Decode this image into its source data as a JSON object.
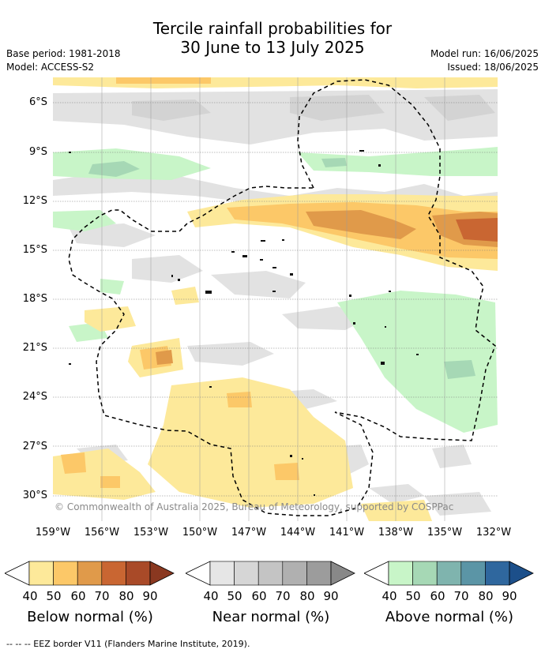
{
  "header": {
    "title_line1": "Tercile rainfall probabilities for",
    "title_line2": "30 June to 13 July 2025",
    "base_period": "Base period: 1981-2018",
    "model": "Model: ACCESS-S2",
    "model_run": "Model run: 16/06/2025",
    "issued": "Issued: 18/06/2025"
  },
  "map": {
    "latitude_labels": [
      "6°S",
      "9°S",
      "12°S",
      "15°S",
      "18°S",
      "21°S",
      "24°S",
      "27°S",
      "30°S"
    ],
    "longitude_labels": [
      "159°W",
      "156°W",
      "153°W",
      "150°W",
      "147°W",
      "144°W",
      "141°W",
      "138°W",
      "135°W",
      "132°W"
    ],
    "copyright": "© Commonwealth of Australia 2025, Bureau of Meteorology, supported by COSPPac"
  },
  "legends": [
    {
      "title": "Below normal (%)",
      "ticks": [
        "40",
        "50",
        "60",
        "70",
        "80",
        "90"
      ],
      "colors": [
        "#fde99a",
        "#fcc868",
        "#e09a4a",
        "#c96632",
        "#a94a28",
        "#8a3820"
      ]
    },
    {
      "title": "Near normal (%)",
      "ticks": [
        "40",
        "50",
        "60",
        "70",
        "80",
        "90"
      ],
      "colors": [
        "#e6e6e6",
        "#d6d6d6",
        "#c4c4c4",
        "#b0b0b0",
        "#9c9c9c",
        "#888888"
      ]
    },
    {
      "title": "Above normal (%)",
      "ticks": [
        "40",
        "50",
        "60",
        "70",
        "80",
        "90"
      ],
      "colors": [
        "#c8f5c8",
        "#a6d8b5",
        "#7fb4ae",
        "#5b95a6",
        "#2f679e",
        "#1c4f8a"
      ]
    }
  ],
  "footer": "--  --  -- EEZ border V11 (Flanders Marine Institute, 2019)."
}
